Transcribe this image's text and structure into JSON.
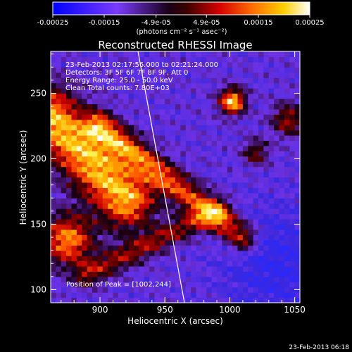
{
  "colorbar": {
    "ticks": [
      "-0.00025",
      "-0.00015",
      "-4.9e-05",
      "4.9e-05",
      "0.00015",
      "0.00025"
    ],
    "tick_values": [
      -0.00025,
      -0.00015,
      -4.9e-05,
      4.9e-05,
      0.00015,
      0.00025
    ],
    "range": [
      -0.00025,
      0.00025
    ],
    "units": "(photons cm⁻² s⁻¹ asec⁻²)"
  },
  "title": "Reconstructed RHESSI Image",
  "info": {
    "line1": "23-Feb-2013 02:17:56.000 to 02:21:24.000",
    "line2": "Detectors: 3F 5F 6F 7F 8F 9F, Att 0",
    "line3": "Energy Range: 25.0 - 50.0 keV",
    "line4": "Clean    Total counts: 7.80E+03"
  },
  "peak": "Position of Peak = [1002,244]",
  "footer": "23-Feb-2013 06:18",
  "colors": {
    "background": "#000000",
    "limb": "#ffffff"
  },
  "chart_data": {
    "type": "heatmap",
    "title": "Reconstructed RHESSI Image",
    "xlabel": "Heliocentric X (arcsec)",
    "ylabel": "Heliocentric Y (arcsec)",
    "xlim": [
      862,
      1054
    ],
    "ylim": [
      90,
      282
    ],
    "x_ticks": [
      900,
      950,
      1000,
      1050
    ],
    "y_ticks": [
      100,
      150,
      200,
      250
    ],
    "colormap": "rainbow/hot (blue-purple-black-red-orange-yellow-white)",
    "value_range": [
      -0.00025,
      0.00025
    ],
    "peak_position": [
      1002,
      244
    ],
    "limb_line": [
      [
        935,
        282
      ],
      [
        963,
        90
      ]
    ],
    "grid": false,
    "legend": "colorbar top"
  }
}
